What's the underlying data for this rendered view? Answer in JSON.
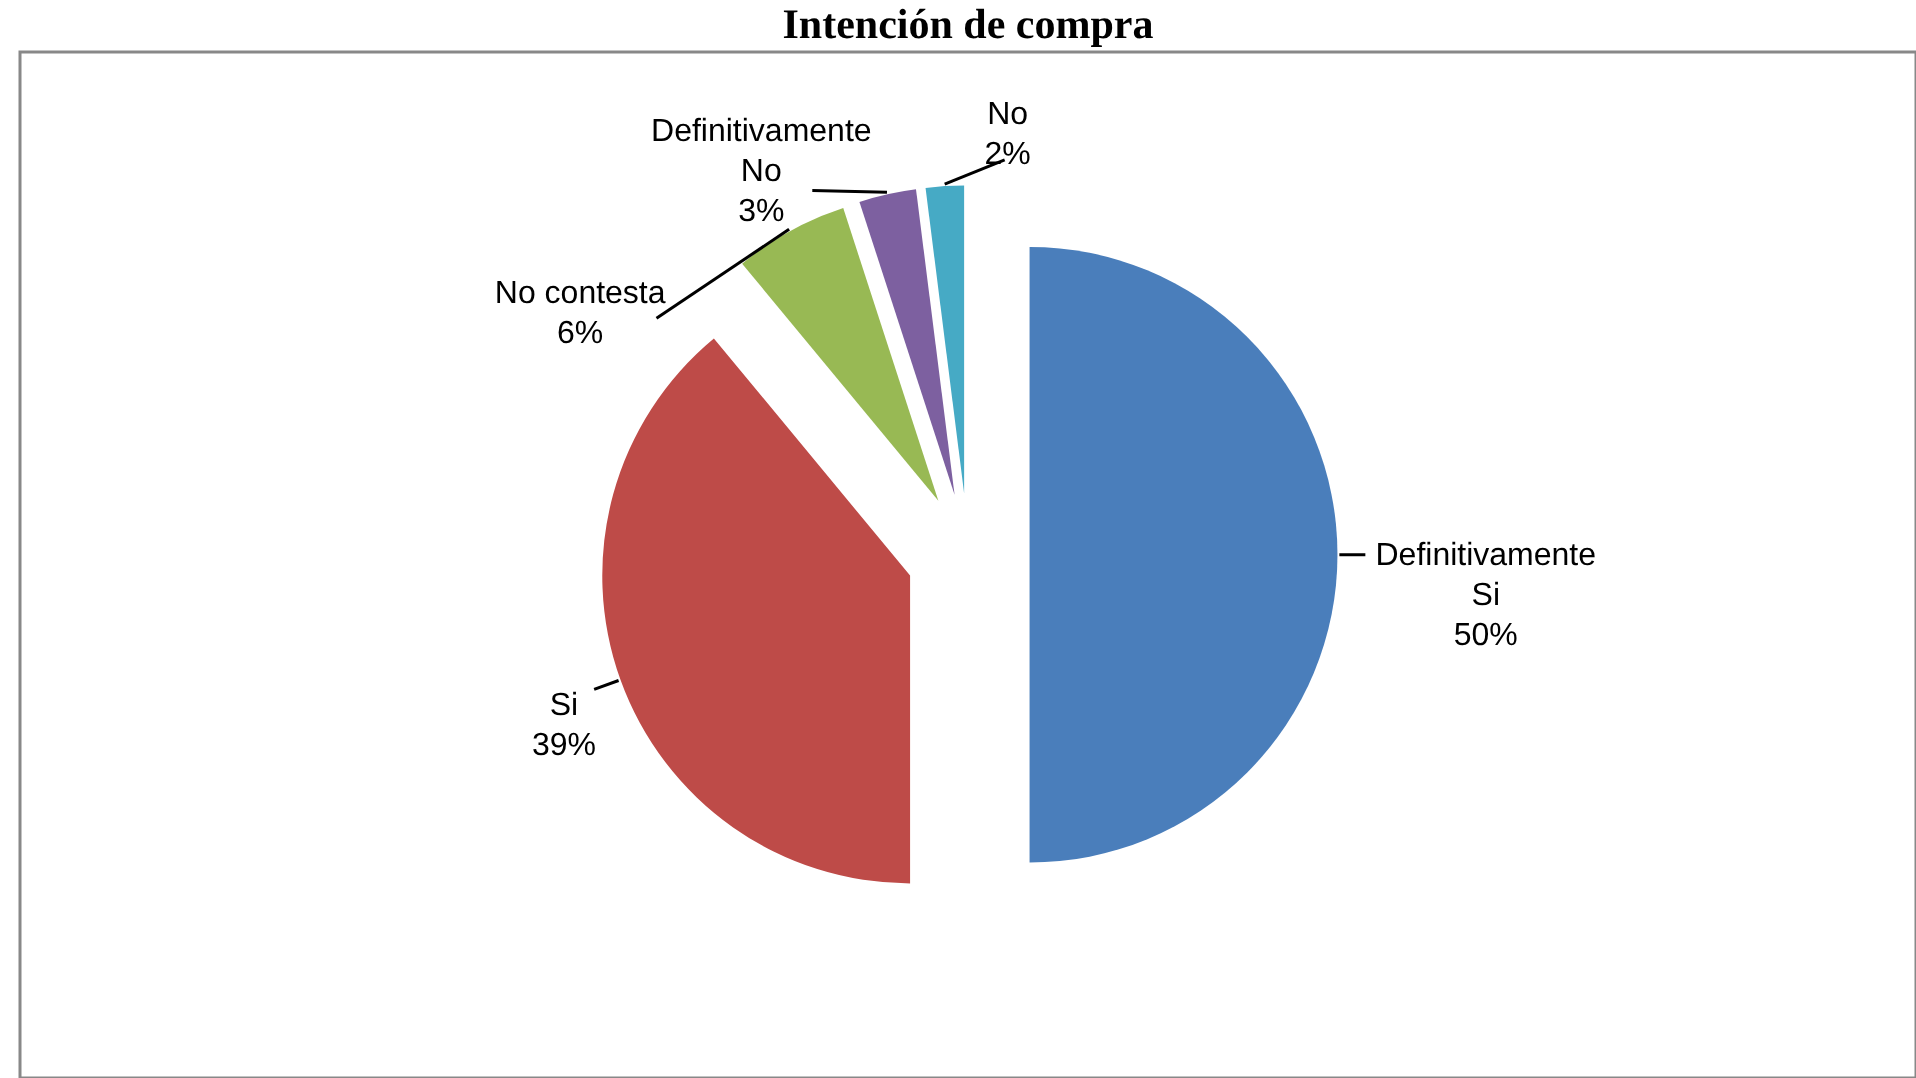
{
  "chart_data": {
    "type": "pie",
    "title": "Intención de compra",
    "categories": [
      "Definitivamente Si",
      "Si",
      "No contesta",
      "Definitivamente No",
      "No"
    ],
    "values": [
      50,
      39,
      6,
      3,
      2
    ],
    "value_labels": [
      "50%",
      "39%",
      "6%",
      "3%",
      "2%"
    ],
    "colors": [
      "#4a7ebb",
      "#be4b48",
      "#98b954",
      "#7d60a0",
      "#46aac5"
    ]
  }
}
